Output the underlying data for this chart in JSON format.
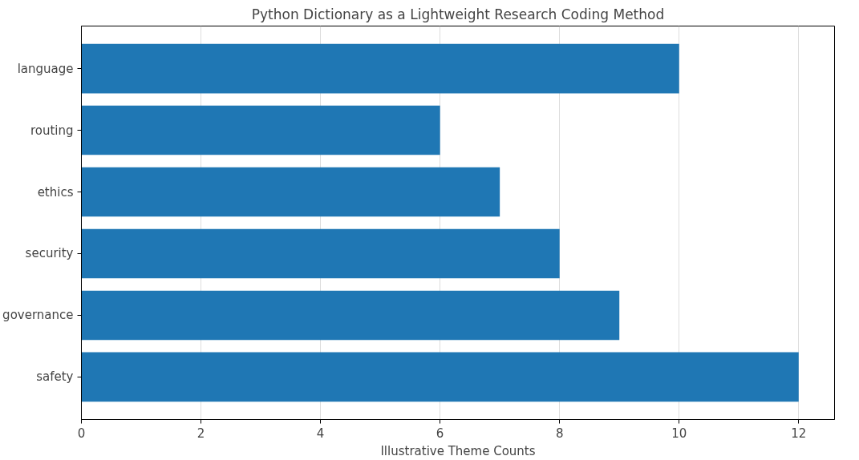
{
  "chart_data": {
    "type": "bar",
    "orientation": "horizontal",
    "title": "Python Dictionary as a Lightweight Research Coding Method",
    "xlabel": "Illustrative Theme Counts",
    "categories": [
      "language",
      "routing",
      "ethics",
      "security",
      "governance",
      "safety"
    ],
    "values": [
      10,
      6,
      7,
      8,
      9,
      12
    ],
    "color": "#1f77b4",
    "xlim": [
      0,
      12.6
    ],
    "xticks": [
      0,
      2,
      4,
      6,
      8,
      10,
      12
    ],
    "grid": "x"
  }
}
